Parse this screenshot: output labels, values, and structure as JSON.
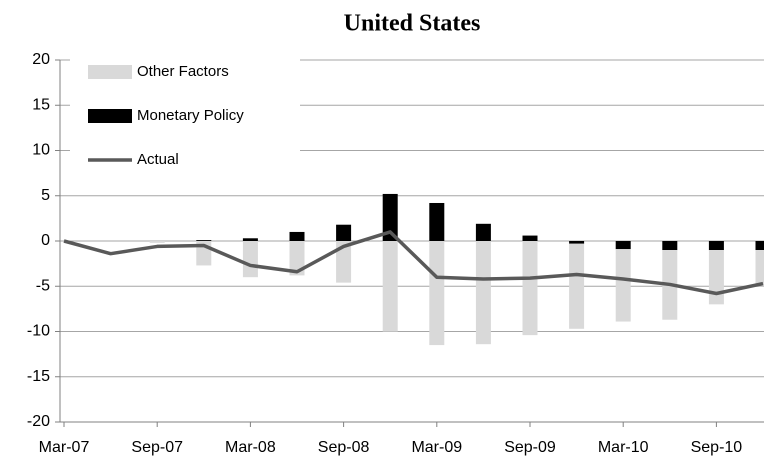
{
  "chart_data": {
    "type": "bar-line",
    "title": "United States",
    "categories": [
      "Mar-07",
      null,
      "Sep-07",
      null,
      "Mar-08",
      null,
      "Sep-08",
      null,
      "Mar-09",
      null,
      "Sep-09",
      null,
      "Mar-10",
      null,
      "Sep-10",
      null
    ],
    "series": [
      {
        "name": "Other Factors",
        "kind": "bar",
        "color": "#d9d9d9",
        "values": [
          0,
          0,
          -0.2,
          -2.7,
          -4.0,
          -3.8,
          -4.6,
          -10.0,
          -11.5,
          -11.4,
          -10.4,
          -9.4,
          -8.0,
          -7.7,
          -6.0,
          -4.0
        ]
      },
      {
        "name": "Monetary Policy",
        "kind": "bar",
        "color": "#000000",
        "values": [
          0,
          0,
          0,
          0.1,
          0.3,
          1.0,
          1.8,
          5.2,
          4.2,
          1.9,
          0.6,
          -0.3,
          -0.9,
          -1.0,
          -1.0,
          -1.0
        ]
      },
      {
        "name": "Actual",
        "kind": "line",
        "color": "#595959",
        "values": [
          0,
          -1.4,
          -0.6,
          -0.5,
          -2.7,
          -3.4,
          -0.6,
          1.0,
          -4.0,
          -4.2,
          -4.1,
          -3.7,
          -4.2,
          -4.8,
          -5.8,
          -4.7
        ]
      }
    ],
    "ylim": [
      -20,
      20
    ],
    "yticks": [
      -20,
      -15,
      -10,
      -5,
      0,
      5,
      10,
      15,
      20
    ],
    "grid": true,
    "legend": "top-left"
  }
}
